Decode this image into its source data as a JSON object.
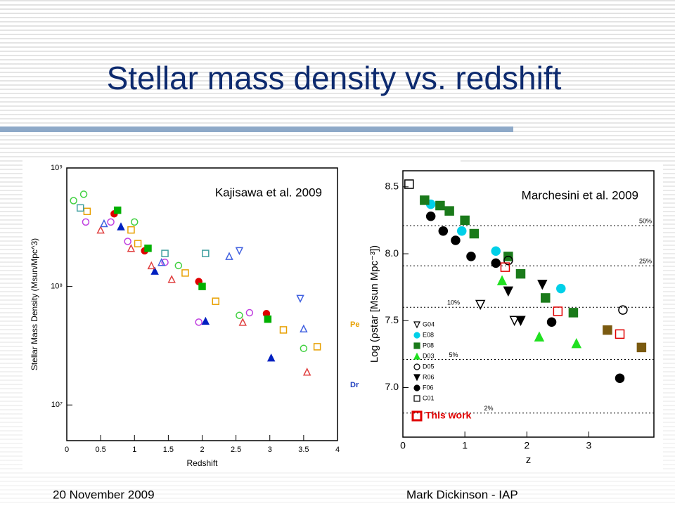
{
  "slide": {
    "title": "Stellar mass density vs. redshift",
    "footer_left": "20 November 2009",
    "footer_right": "Mark Dickinson - IAP"
  },
  "chart_data": [
    {
      "type": "scatter",
      "annotation": "Kajisawa et al. 2009",
      "xlabel": "Redshift",
      "ylabel": "Stellar Mass Density  (Msun/Mpc^3)",
      "xlim": [
        0,
        4
      ],
      "xticks": [
        0,
        0.5,
        1,
        1.5,
        2,
        2.5,
        3,
        3.5,
        4
      ],
      "ylim": [
        5000000,
        1000000000
      ],
      "log_y": true,
      "yticks": [
        {
          "value": 10000000,
          "label": "10⁷"
        },
        {
          "value": 100000000,
          "label": "10⁸"
        },
        {
          "value": 1000000000,
          "label": "10⁹"
        }
      ],
      "cut_labels": [
        {
          "text": "Pe",
          "color": "#e8a000"
        },
        {
          "text": "Dr",
          "color": "#2040c0"
        }
      ],
      "series": [
        {
          "color": "#e00000",
          "marker": "circle",
          "filled": true,
          "x": [
            0.7,
            1.15,
            1.95,
            2.95
          ],
          "values": [
            410000000,
            200000000,
            110000000,
            59000000
          ]
        },
        {
          "color": "#00b000",
          "marker": "square",
          "filled": true,
          "x": [
            0.75,
            1.2,
            2.0,
            2.97
          ],
          "values": [
            440000000,
            210000000,
            100000000,
            53000000
          ]
        },
        {
          "color": "#0020c0",
          "marker": "triangle",
          "filled": true,
          "x": [
            0.8,
            1.3,
            2.05,
            3.02
          ],
          "values": [
            320000000,
            135000000,
            51000000,
            25000000
          ]
        },
        {
          "color": "#e8a000",
          "marker": "square",
          "filled": false,
          "x": [
            0.3,
            0.95,
            1.05,
            1.75,
            2.2,
            3.2,
            3.7
          ],
          "values": [
            430000000,
            300000000,
            230000000,
            130000000,
            75000000,
            43000000,
            31000000
          ]
        },
        {
          "color": "#40d040",
          "marker": "circle",
          "filled": false,
          "x": [
            0.1,
            0.25,
            1.0,
            1.65,
            2.55,
            3.5
          ],
          "values": [
            530000000,
            600000000,
            350000000,
            150000000,
            57000000,
            30000000
          ]
        },
        {
          "color": "#c040e0",
          "marker": "circle",
          "filled": false,
          "x": [
            0.28,
            0.65,
            0.9,
            1.45,
            1.95,
            2.7
          ],
          "values": [
            350000000,
            350000000,
            240000000,
            160000000,
            50000000,
            60000000
          ]
        },
        {
          "color": "#e04040",
          "marker": "triangle",
          "filled": false,
          "x": [
            0.5,
            0.95,
            1.25,
            1.55,
            2.6,
            3.55
          ],
          "values": [
            300000000,
            210000000,
            150000000,
            115000000,
            50000000,
            19000000
          ]
        },
        {
          "color": "#4060e0",
          "marker": "triangle",
          "filled": false,
          "x": [
            0.55,
            1.4,
            2.4,
            3.5
          ],
          "values": [
            340000000,
            160000000,
            180000000,
            44000000
          ]
        },
        {
          "color": "#4060e0",
          "marker": "triangle-down",
          "filled": false,
          "x": [
            2.55,
            3.45
          ],
          "values": [
            200000000,
            79000000
          ]
        },
        {
          "color": "#40a0a0",
          "marker": "square",
          "filled": false,
          "x": [
            0.2,
            1.45,
            2.05
          ],
          "values": [
            460000000,
            190000000,
            190000000
          ]
        }
      ]
    },
    {
      "type": "scatter",
      "annotation": "Marchesini et al. 2009",
      "xlabel": "z",
      "ylabel": "Log (ρstar [Msun Mpc⁻³])",
      "xlim": [
        0,
        4.05
      ],
      "xticks": [
        0,
        1,
        2,
        3
      ],
      "ylim": [
        6.63,
        8.62
      ],
      "yticks": [
        {
          "value": 7,
          "label": "7.0"
        },
        {
          "value": 7.5,
          "label": "7.5"
        },
        {
          "value": 8,
          "label": "8.0"
        },
        {
          "value": 8.5,
          "label": "8.5"
        }
      ],
      "legend": "lower left",
      "reference_lines": [
        {
          "value": 8.21,
          "label": "50%"
        },
        {
          "value": 7.91,
          "label": "25%"
        },
        {
          "value": 7.6,
          "label": "10%"
        },
        {
          "value": 7.21,
          "label": "5%"
        },
        {
          "value": 6.81,
          "label": "2%"
        }
      ],
      "series": [
        {
          "name": "G04",
          "color": "#000000",
          "marker": "triangle-down",
          "filled": false,
          "x": [
            1.25,
            1.8
          ],
          "values": [
            7.62,
            7.5
          ]
        },
        {
          "name": "E08",
          "color": "#00d0e8",
          "marker": "circle",
          "filled": true,
          "x": [
            0.45,
            0.95,
            1.5,
            2.55
          ],
          "values": [
            8.37,
            8.17,
            8.02,
            7.74
          ]
        },
        {
          "name": "P08",
          "color": "#1a7a1a",
          "marker": "square",
          "filled": true,
          "x": [
            0.35,
            0.6,
            0.75,
            1.0,
            1.15,
            1.7,
            1.9,
            2.3,
            2.75
          ],
          "values": [
            8.4,
            8.36,
            8.32,
            8.25,
            8.15,
            7.98,
            7.85,
            7.67,
            7.56
          ]
        },
        {
          "name": "D03",
          "color": "#20e020",
          "marker": "triangle",
          "filled": true,
          "x": [
            1.6,
            2.2,
            2.8
          ],
          "values": [
            7.8,
            7.38,
            7.33
          ]
        },
        {
          "name": "D05",
          "color": "#000000",
          "marker": "circle",
          "filled": false,
          "x": [
            1.7,
            3.55
          ],
          "values": [
            7.95,
            7.58
          ]
        },
        {
          "name": "R06",
          "color": "#000000",
          "marker": "triangle-down",
          "filled": true,
          "x": [
            1.7,
            1.9,
            2.25
          ],
          "values": [
            7.72,
            7.5,
            7.77
          ]
        },
        {
          "name": "F06",
          "color": "#000000",
          "marker": "circle",
          "filled": true,
          "x": [
            0.45,
            0.65,
            0.85,
            1.1,
            1.5,
            2.4,
            3.5
          ],
          "values": [
            8.28,
            8.17,
            8.1,
            7.98,
            7.93,
            7.49,
            7.07
          ]
        },
        {
          "name": "C01",
          "color": "#000000",
          "marker": "square",
          "filled": false,
          "x": [
            0.1
          ],
          "values": [
            8.52
          ]
        },
        {
          "name": "This work",
          "color": "#e00000",
          "marker": "square",
          "filled": false,
          "x": [
            1.65,
            2.5,
            3.5
          ],
          "values": [
            7.9,
            7.57,
            7.4
          ]
        },
        {
          "color": "#7a5a10",
          "marker": "square",
          "filled": true,
          "x": [
            3.3,
            3.85
          ],
          "values": [
            7.43,
            7.3
          ]
        }
      ]
    }
  ]
}
